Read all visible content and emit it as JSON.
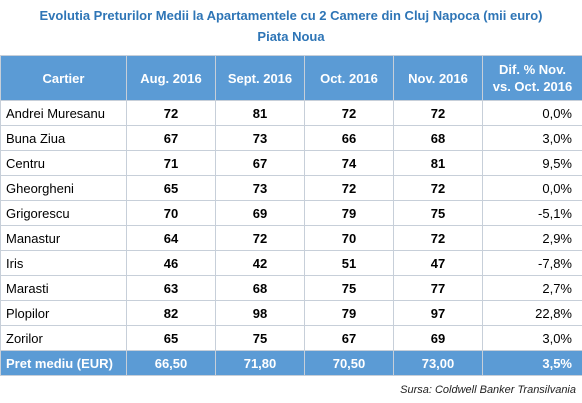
{
  "title_line1": "Evolutia Preturilor Medii la Apartamentele cu 2 Camere din Cluj Napoca (mii euro)",
  "title_line2": "Piata Noua",
  "source": "Sursa: Coldwell Banker Transilvania",
  "chart_data": {
    "type": "table",
    "title": "Evolutia Preturilor Medii la Apartamentele cu 2 Camere din Cluj Napoca (mii euro)",
    "subtitle": "Piata Noua",
    "columns": [
      "Cartier",
      "Aug. 2016",
      "Sept. 2016",
      "Oct. 2016",
      "Nov. 2016",
      "Dif. % Nov. vs. Oct. 2016"
    ],
    "rows": [
      [
        "Andrei Muresanu",
        "72",
        "81",
        "72",
        "72",
        "0,0%"
      ],
      [
        "Buna Ziua",
        "67",
        "73",
        "66",
        "68",
        "3,0%"
      ],
      [
        "Centru",
        "71",
        "67",
        "74",
        "81",
        "9,5%"
      ],
      [
        "Gheorgheni",
        "65",
        "73",
        "72",
        "72",
        "0,0%"
      ],
      [
        "Grigorescu",
        "70",
        "69",
        "79",
        "75",
        "-5,1%"
      ],
      [
        "Manastur",
        "64",
        "72",
        "70",
        "72",
        "2,9%"
      ],
      [
        "Iris",
        "46",
        "42",
        "51",
        "47",
        "-7,8%"
      ],
      [
        "Marasti",
        "63",
        "68",
        "75",
        "77",
        "2,7%"
      ],
      [
        "Plopilor",
        "82",
        "98",
        "79",
        "97",
        "22,8%"
      ],
      [
        "Zorilor",
        "65",
        "75",
        "67",
        "69",
        "3,0%"
      ]
    ],
    "footer": [
      "Pret mediu (EUR)",
      "66,50",
      "71,80",
      "70,50",
      "73,00",
      "3,5%"
    ]
  }
}
